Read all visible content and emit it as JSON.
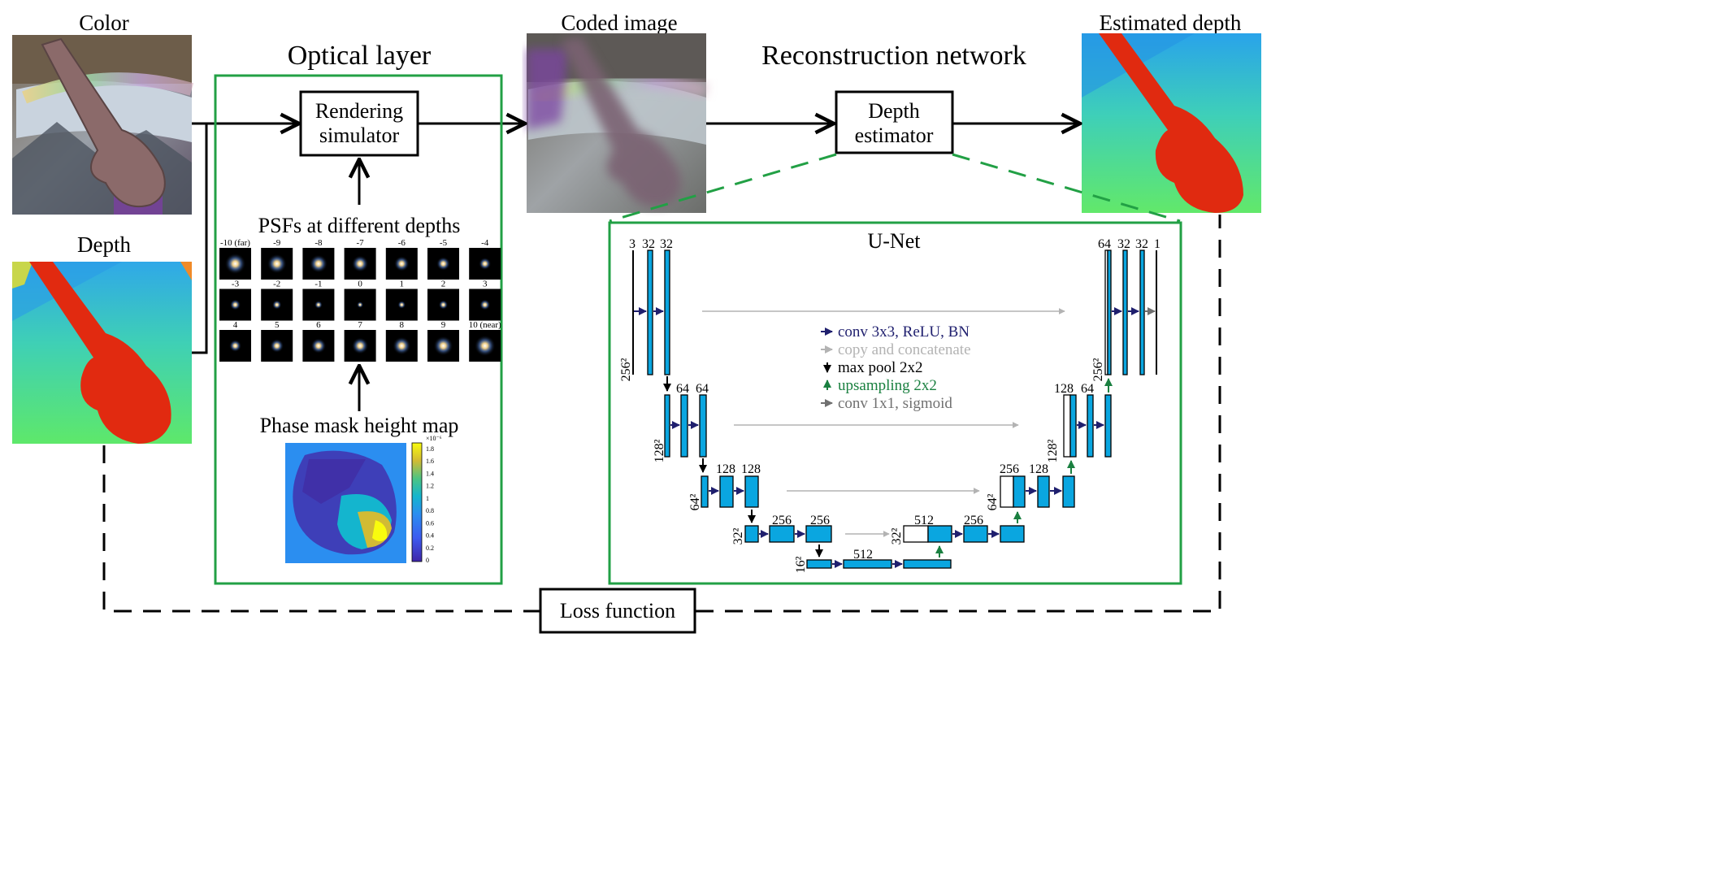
{
  "titles": {
    "color": "Color",
    "depth": "Depth",
    "coded": "Coded image",
    "estimated": "Estimated depth",
    "optical_layer": "Optical layer",
    "reconstruction": "Reconstruction network"
  },
  "boxes": {
    "rendering_line1": "Rendering",
    "rendering_line2": "simulator",
    "depth_est_line1": "Depth",
    "depth_est_line2": "estimator",
    "loss": "Loss function"
  },
  "psf": {
    "title": "PSFs at different depths",
    "labels": [
      "-10 (far)",
      "-9",
      "-8",
      "-7",
      "-6",
      "-5",
      "-4",
      "-3",
      "-2",
      "-1",
      "0",
      "1",
      "2",
      "3",
      "4",
      "5",
      "6",
      "7",
      "8",
      "9",
      "10 (near)"
    ]
  },
  "phase_mask": {
    "title": "Phase mask height map",
    "colorbar_exponent": "×10⁻⁶",
    "colorbar_ticks": [
      "1.8",
      "1.6",
      "1.4",
      "1.2",
      "1",
      "0.8",
      "0.6",
      "0.4",
      "0.2",
      "0"
    ]
  },
  "unet": {
    "title": "U-Net",
    "legend": [
      {
        "label": "conv 3x3, ReLU, BN",
        "color": "#1f1f6e"
      },
      {
        "label": "copy and concatenate",
        "color": "#b3b3b3"
      },
      {
        "label": "max pool 2x2",
        "color": "#000000"
      },
      {
        "label": "upsampling 2x2",
        "color": "#1a8040"
      },
      {
        "label": "conv 1x1, sigmoid",
        "color": "#707070"
      }
    ],
    "channel_labels": {
      "enc1": [
        "3",
        "32",
        "32"
      ],
      "enc2": [
        "64",
        "64"
      ],
      "enc3": [
        "128",
        "128"
      ],
      "enc4": [
        "256",
        "256"
      ],
      "bottleneck": "512",
      "dec4": [
        "512",
        "256"
      ],
      "dec3": [
        "256",
        "128"
      ],
      "dec2": [
        "128",
        "64"
      ],
      "dec1": [
        "64",
        "32",
        "32",
        "1"
      ]
    },
    "size_labels": {
      "s256_left": "256²",
      "s128_left": "128²",
      "s64_left": "64²",
      "s32_left": "32²",
      "s16": "16²",
      "s32_right": "32²",
      "s64_right": "64²",
      "s128_right": "128²",
      "s256_right": "256²"
    }
  },
  "colors": {
    "green": "#22a045",
    "block_fill": "#0aa6e0",
    "conv_arrow": "#1f1f6e",
    "copy_arrow": "#b3b3b3",
    "up_arrow": "#1a8040",
    "sigmoid_arrow": "#707070"
  }
}
